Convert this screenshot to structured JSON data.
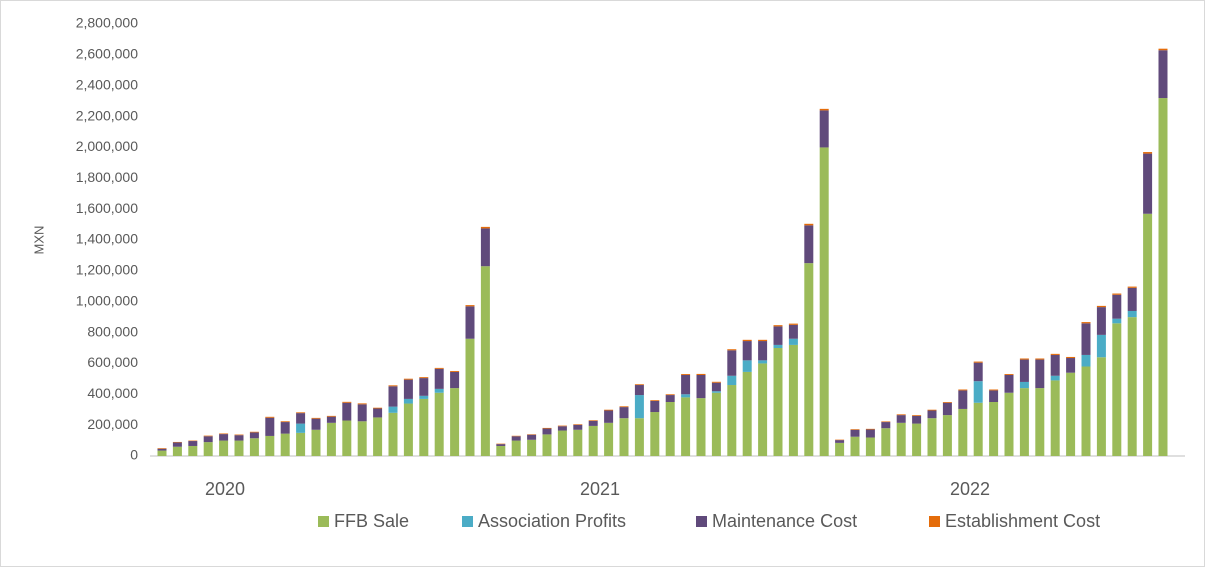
{
  "chart_data": {
    "type": "stacked_bar",
    "y_label": "MXN",
    "x_group_labels": [
      "2020",
      "2021",
      "2022"
    ],
    "categories": [
      null,
      null,
      null,
      null,
      null,
      null,
      null,
      null,
      null,
      null,
      null,
      null,
      null,
      null,
      null,
      null,
      null,
      null,
      null,
      null,
      null,
      null,
      null,
      null,
      null,
      null,
      null,
      null,
      null,
      null,
      null,
      null,
      null,
      null,
      null,
      null,
      null,
      null,
      null,
      null,
      null,
      null,
      null,
      null,
      null,
      null,
      null,
      null,
      null,
      null,
      null,
      null,
      null,
      null,
      null,
      null,
      null,
      null,
      null,
      null,
      null,
      null,
      null,
      null,
      null,
      null
    ],
    "series": [
      {
        "name": "FFB Sale",
        "color": "#9bbb59",
        "values": [
          35000,
          60000,
          65000,
          90000,
          100000,
          100000,
          115000,
          130000,
          145000,
          150000,
          170000,
          215000,
          230000,
          225000,
          250000,
          280000,
          340000,
          370000,
          410000,
          440000,
          760000,
          1230000,
          65000,
          100000,
          105000,
          140000,
          165000,
          170000,
          195000,
          215000,
          245000,
          245000,
          285000,
          350000,
          380000,
          375000,
          410000,
          460000,
          545000,
          600000,
          700000,
          720000,
          1250000,
          2000000,
          85000,
          125000,
          120000,
          180000,
          215000,
          210000,
          245000,
          265000,
          305000,
          345000,
          350000,
          410000,
          440000,
          440000,
          490000,
          540000,
          580000,
          640000,
          860000,
          900000,
          1570000,
          2320000
        ]
      },
      {
        "name": "Association Profits",
        "color": "#4bacc6",
        "values": [
          0,
          0,
          0,
          0,
          0,
          0,
          0,
          0,
          0,
          60000,
          0,
          0,
          0,
          0,
          0,
          40000,
          30000,
          20000,
          25000,
          0,
          0,
          0,
          0,
          0,
          0,
          0,
          0,
          0,
          0,
          0,
          0,
          150000,
          0,
          0,
          20000,
          0,
          10000,
          60000,
          75000,
          20000,
          20000,
          40000,
          0,
          0,
          0,
          0,
          0,
          0,
          0,
          0,
          0,
          0,
          0,
          140000,
          0,
          0,
          40000,
          0,
          30000,
          0,
          75000,
          145000,
          30000,
          40000,
          0,
          0
        ]
      },
      {
        "name": "Maintenance Cost",
        "color": "#604a7b",
        "values": [
          12000,
          28000,
          32000,
          38000,
          42000,
          35000,
          38000,
          118000,
          75000,
          68000,
          72000,
          40000,
          115000,
          110000,
          58000,
          132000,
          125000,
          115000,
          130000,
          105000,
          210000,
          245000,
          12000,
          28000,
          33000,
          38000,
          28000,
          32000,
          33000,
          80000,
          72000,
          65000,
          72000,
          45000,
          125000,
          150000,
          55000,
          165000,
          125000,
          125000,
          120000,
          90000,
          245000,
          240000,
          18000,
          45000,
          52000,
          40000,
          50000,
          50000,
          50000,
          80000,
          120000,
          120000,
          75000,
          115000,
          145000,
          185000,
          135000,
          95000,
          205000,
          180000,
          155000,
          150000,
          390000,
          310000
        ]
      },
      {
        "name": "Establishment Cost",
        "color": "#e46c0a",
        "values": [
          4000,
          3000,
          3000,
          4000,
          4000,
          4000,
          4000,
          6000,
          5000,
          5000,
          5000,
          5000,
          6000,
          6000,
          5000,
          6000,
          6000,
          6000,
          6000,
          6000,
          8000,
          10000,
          3000,
          3000,
          3000,
          4000,
          4000,
          4000,
          4000,
          5000,
          5000,
          5000,
          5000,
          5000,
          6000,
          7000,
          6000,
          7000,
          8000,
          8000,
          8000,
          8000,
          10000,
          10000,
          3000,
          4000,
          4000,
          4000,
          5000,
          5000,
          5000,
          5000,
          6000,
          7000,
          6000,
          6000,
          7000,
          7000,
          7000,
          7000,
          8000,
          8000,
          8000,
          8000,
          10000,
          10000
        ]
      }
    ],
    "ylim": [
      0,
      2800000
    ],
    "yticks": [
      0,
      {
        "value": 200000,
        "label": "200,000"
      },
      {
        "value": 400000,
        "label": "400,000"
      },
      {
        "value": 600000,
        "label": "600,000"
      },
      {
        "value": 800000,
        "label": "800,000"
      },
      {
        "value": 1000000,
        "label": "1,000,000"
      },
      {
        "value": 1200000,
        "label": "1,200,000"
      },
      {
        "value": 1400000,
        "label": "1,400,000"
      },
      {
        "value": 1600000,
        "label": "1,600,000"
      },
      {
        "value": 1800000,
        "label": "1,800,000"
      },
      {
        "value": 2000000,
        "label": "2,000,000"
      },
      {
        "value": 2200000,
        "label": "2,200,000"
      },
      {
        "value": 2400000,
        "label": "2,400,000"
      },
      {
        "value": 2600000,
        "label": "2,600,000"
      },
      {
        "value": 2800000,
        "label": "2,800,000"
      }
    ],
    "grid": false,
    "legend": "bottom"
  }
}
